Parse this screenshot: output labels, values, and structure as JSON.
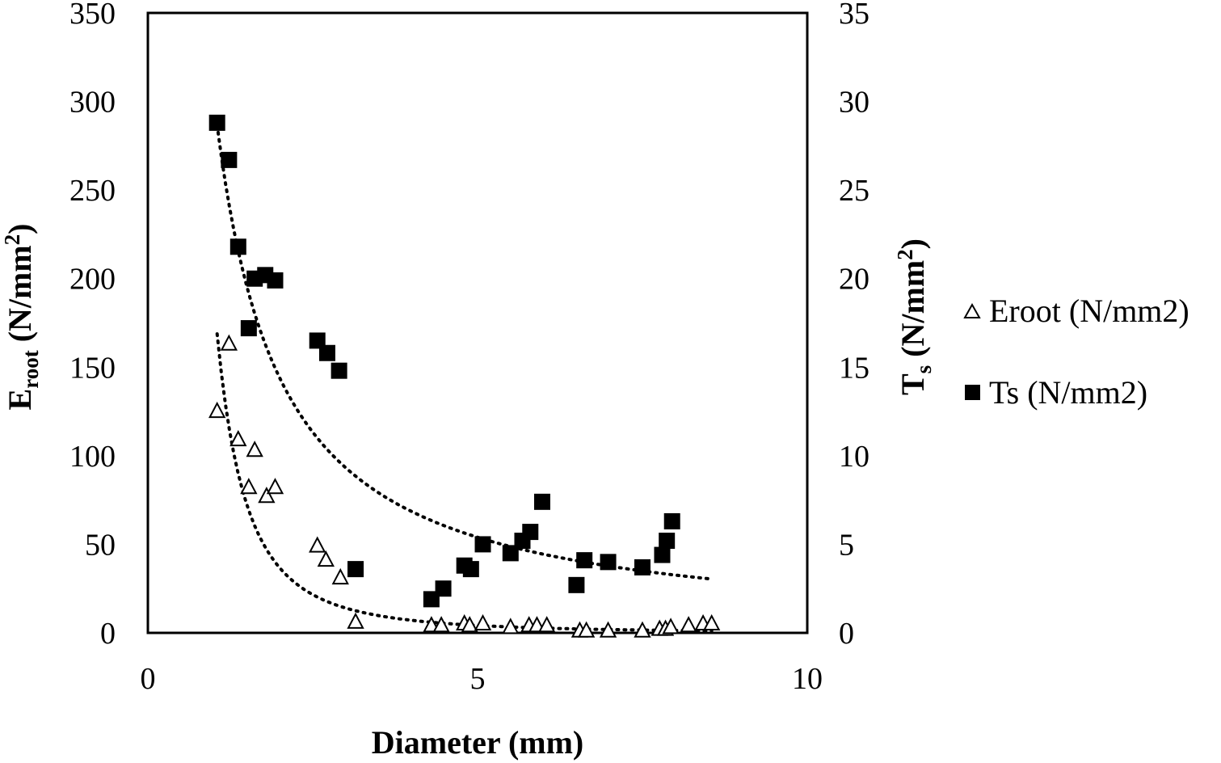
{
  "chart_data": {
    "type": "scatter",
    "title": "",
    "xlabel": "Diameter (mm)",
    "ylabel_left": {
      "main": "E",
      "sub": "root",
      "rest": " (N/mm",
      "sup": "2",
      "close": ")"
    },
    "ylabel_right": {
      "main": "T",
      "sub": "s",
      "rest": " (N/mm",
      "sup": "2",
      "close": ")"
    },
    "xlim": [
      0,
      10
    ],
    "ylim_left": [
      0,
      350
    ],
    "ylim_right": [
      0,
      35
    ],
    "x_ticks": [
      "0",
      "5",
      "10"
    ],
    "y_left_ticks": [
      "0",
      "50",
      "100",
      "150",
      "200",
      "250",
      "300",
      "350"
    ],
    "y_right_ticks": [
      "0",
      "5",
      "10",
      "15",
      "20",
      "25",
      "30",
      "35"
    ],
    "grid": false,
    "legend_position": "right",
    "series": [
      {
        "name": "Eroot (N/mm2)",
        "axis": "left",
        "marker": "open-triangle",
        "trendline": {
          "type": "power",
          "a": 189.5,
          "b": -2.37,
          "x_range": [
            1.05,
            8.55
          ]
        },
        "points": [
          [
            1.05,
            125
          ],
          [
            1.23,
            163
          ],
          [
            1.37,
            109
          ],
          [
            1.53,
            82
          ],
          [
            1.62,
            103
          ],
          [
            1.8,
            77
          ],
          [
            1.93,
            82
          ],
          [
            2.57,
            49
          ],
          [
            2.7,
            41
          ],
          [
            2.92,
            31
          ],
          [
            3.15,
            6
          ],
          [
            4.3,
            4
          ],
          [
            4.45,
            4
          ],
          [
            4.8,
            5
          ],
          [
            4.88,
            4
          ],
          [
            5.08,
            5
          ],
          [
            5.5,
            3
          ],
          [
            5.78,
            4
          ],
          [
            5.9,
            4
          ],
          [
            6.05,
            4
          ],
          [
            6.55,
            1
          ],
          [
            6.65,
            1
          ],
          [
            6.98,
            1
          ],
          [
            7.5,
            1
          ],
          [
            7.76,
            2
          ],
          [
            7.85,
            2
          ],
          [
            7.93,
            3
          ],
          [
            8.2,
            4
          ],
          [
            8.42,
            5
          ],
          [
            8.55,
            5
          ]
        ]
      },
      {
        "name": "Ts (N/mm2)",
        "axis": "right",
        "marker": "filled-square",
        "trendline": {
          "type": "power",
          "a": 30.2,
          "b": -1.07,
          "x_range": [
            1.05,
            8.55
          ]
        },
        "points": [
          [
            1.05,
            28.8
          ],
          [
            1.23,
            26.7
          ],
          [
            1.37,
            21.8
          ],
          [
            1.53,
            17.2
          ],
          [
            1.62,
            20.0
          ],
          [
            1.78,
            20.2
          ],
          [
            1.93,
            19.9
          ],
          [
            2.57,
            16.5
          ],
          [
            2.72,
            15.8
          ],
          [
            2.9,
            14.8
          ],
          [
            3.15,
            3.6
          ],
          [
            4.3,
            1.9
          ],
          [
            4.48,
            2.5
          ],
          [
            4.8,
            3.8
          ],
          [
            4.9,
            3.6
          ],
          [
            5.08,
            5.0
          ],
          [
            5.5,
            4.5
          ],
          [
            5.68,
            5.2
          ],
          [
            5.8,
            5.7
          ],
          [
            5.98,
            7.4
          ],
          [
            6.5,
            2.7
          ],
          [
            6.62,
            4.1
          ],
          [
            6.98,
            4.0
          ],
          [
            7.5,
            3.7
          ],
          [
            7.8,
            4.4
          ],
          [
            7.87,
            5.2
          ],
          [
            7.95,
            6.3
          ]
        ]
      }
    ]
  }
}
